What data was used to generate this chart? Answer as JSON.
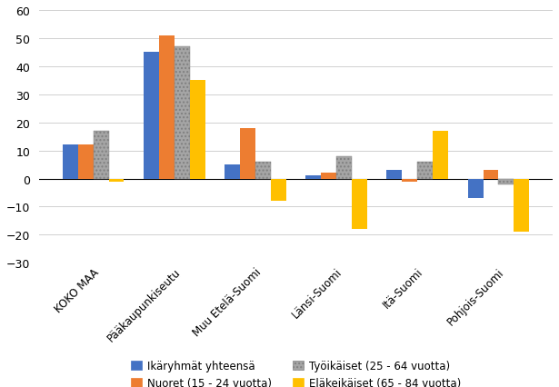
{
  "categories": [
    "KOKO MAA",
    "Pääkaupunkiseutu",
    "Muu Etelä-Suomi",
    "Länsi-Suomi",
    "Itä-Suomi",
    "Pohjois-Suomi"
  ],
  "series": {
    "Ikäryhmät yhteensä": [
      12,
      45,
      5,
      1,
      3,
      -7
    ],
    "Nuoret (15 - 24 vuotta)": [
      12,
      51,
      18,
      2,
      -1,
      3
    ],
    "Työikäiset (25 - 64 vuotta)": [
      17,
      47,
      6,
      8,
      6,
      -2
    ],
    "Eläkeikäiset (65 - 84 vuotta)": [
      -1,
      35,
      -8,
      -18,
      17,
      -19
    ]
  },
  "colors": {
    "Ikäryhmät yhteensä": "#4472C4",
    "Nuoret (15 - 24 vuotta)": "#ED7D31",
    "Työikäiset (25 - 64 vuotta)": "#A5A5A5",
    "Eläkeikäiset (65 - 84 vuotta)": "#FFC000"
  },
  "hatches": {
    "Ikäryhmät yhteensä": "",
    "Nuoret (15 - 24 vuotta)": "",
    "Työikäiset (25 - 64 vuotta)": "....",
    "Eläkeikäiset (65 - 84 vuotta)": ""
  },
  "ylim": [
    -30,
    60
  ],
  "yticks": [
    -30,
    -20,
    -10,
    0,
    10,
    20,
    30,
    40,
    50,
    60
  ],
  "background_color": "#FFFFFF",
  "grid_color": "#D0D0D0",
  "bar_width": 0.19
}
